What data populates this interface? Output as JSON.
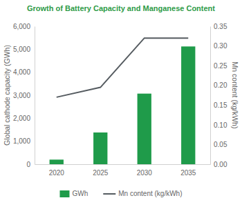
{
  "chart_data": {
    "type": "bar",
    "title": "Growth of Battery Capacity and Manganese Content",
    "ylabel": "Global cathode capacity (GWh)",
    "y2label": "Mn content (kg/kWh)",
    "categories": [
      "2020",
      "2025",
      "2030",
      "2035"
    ],
    "series": [
      {
        "name": "GWh",
        "type": "bar",
        "color": "#1f9b4a",
        "values": [
          200,
          1380,
          3070,
          5120
        ]
      },
      {
        "name": "Mn content (kg/kWh)",
        "type": "line",
        "color": "#555b60",
        "axis": "y2",
        "values": [
          0.17,
          0.195,
          0.32,
          0.32
        ]
      }
    ],
    "ylim": [
      0,
      6000
    ],
    "yticks": [
      0,
      {
        "value": 1000,
        "label": "1,000"
      },
      {
        "value": 2000,
        "label": "2,000"
      },
      {
        "value": 3000,
        "label": "3,000"
      },
      {
        "value": 4000,
        "label": "4,000"
      },
      {
        "value": 5000,
        "label": "5,000"
      },
      {
        "value": 6000,
        "label": "6,000"
      }
    ],
    "y2lim": [
      0,
      0.35
    ],
    "y2ticks": [
      {
        "value": 0,
        "label": "0.00"
      },
      0.05,
      {
        "value": 0.1,
        "label": "0.10"
      },
      0.15,
      {
        "value": 0.2,
        "label": "0.20"
      },
      0.25,
      {
        "value": 0.3,
        "label": "0.30"
      },
      0.35
    ],
    "grid": false,
    "legend": "bottom"
  }
}
